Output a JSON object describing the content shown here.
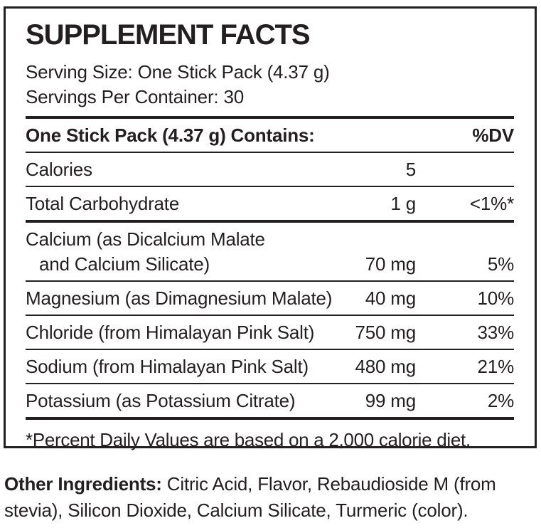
{
  "colors": {
    "text": "#231f20",
    "background": "#ffffff"
  },
  "panel": {
    "title": "SUPPLEMENT FACTS",
    "serving_size": "Serving Size: One Stick Pack (4.37 g)",
    "servings_per_container": "Servings Per Container: 30",
    "table": {
      "header": {
        "label": "One Stick Pack (4.37 g) Contains:",
        "dv": "%DV"
      },
      "rows": [
        {
          "label": "Calories",
          "label2": "",
          "amount": "5",
          "dv": ""
        },
        {
          "label": "Total Carbohydrate",
          "label2": "",
          "amount": "1 g",
          "dv": "<1%*"
        },
        {
          "label": "Calcium (as Dicalcium Malate",
          "label2": "and Calcium Silicate)",
          "amount": "70 mg",
          "dv": "5%"
        },
        {
          "label": "Magnesium (as Dimagnesium Malate)",
          "label2": "",
          "amount": "40 mg",
          "dv": "10%"
        },
        {
          "label": "Chloride (from Himalayan Pink Salt)",
          "label2": "",
          "amount": "750 mg",
          "dv": "33%"
        },
        {
          "label": "Sodium (from Himalayan Pink Salt)",
          "label2": "",
          "amount": "480 mg",
          "dv": "21%"
        },
        {
          "label": "Potassium (as Potassium Citrate)",
          "label2": "",
          "amount": "99 mg",
          "dv": "2%"
        }
      ],
      "footnote": "*Percent Daily Values are based on a 2,000 calorie diet."
    }
  },
  "other_ingredients": {
    "label": "Other Ingredients:",
    "text": "Citric Acid, Flavor, Rebaudioside M (from stevia), Silicon Dioxide, Calcium Silicate, Turmeric (color)."
  }
}
